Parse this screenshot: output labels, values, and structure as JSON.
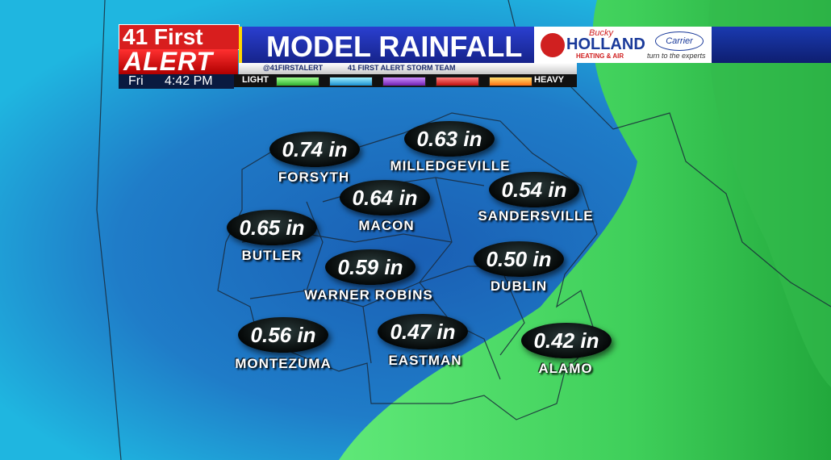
{
  "header": {
    "brand_top": "41 First",
    "brand_bottom": "ALERT",
    "day": "Fri",
    "time": "4:42 PM",
    "title": "MODEL RAINFALL",
    "twitter": "@41FIRSTALERT",
    "facebook": "41 FIRST ALERT STORM TEAM",
    "legend_low": "LIGHT",
    "legend_high": "HEAVY"
  },
  "sponsor": {
    "script": "Bucky",
    "name": "HOLLAND",
    "tagline": "HEATING & AIR",
    "partner": "Carrier",
    "slogan": "turn to the experts"
  },
  "cities": [
    {
      "name": "FORSYTH",
      "amount": "0.74 in"
    },
    {
      "name": "MILLEDGEVILLE",
      "amount": "0.63 in"
    },
    {
      "name": "MACON",
      "amount": "0.64 in"
    },
    {
      "name": "SANDERSVILLE",
      "amount": "0.54 in"
    },
    {
      "name": "BUTLER",
      "amount": "0.65 in"
    },
    {
      "name": "WARNER ROBINS",
      "amount": "0.59 in"
    },
    {
      "name": "DUBLIN",
      "amount": "0.50 in"
    },
    {
      "name": "MONTEZUMA",
      "amount": "0.56 in"
    },
    {
      "name": "EASTMAN",
      "amount": "0.47 in"
    },
    {
      "name": "ALAMO",
      "amount": "0.42 in"
    }
  ]
}
